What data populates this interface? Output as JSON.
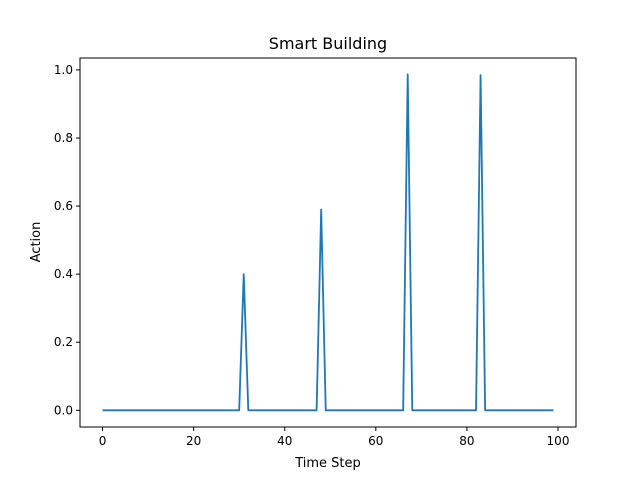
{
  "chart_data": {
    "type": "line",
    "title": "Smart Building",
    "xlabel": "Time Step",
    "ylabel": "Action",
    "xlim": [
      -4.95,
      103.95
    ],
    "ylim": [
      -0.049,
      1.035
    ],
    "xticks": [
      0,
      20,
      40,
      60,
      80,
      100
    ],
    "yticks": [
      0.0,
      0.2,
      0.4,
      0.6,
      0.8,
      1.0
    ],
    "xtick_labels": [
      "0",
      "20",
      "40",
      "60",
      "80",
      "100"
    ],
    "ytick_labels": [
      "0.0",
      "0.2",
      "0.4",
      "0.6",
      "0.8",
      "1.0"
    ],
    "grid": false,
    "series": [
      {
        "color": "#1f77b4",
        "points": [
          [
            0,
            0
          ],
          [
            30,
            0
          ],
          [
            31,
            0.4
          ],
          [
            32,
            0
          ],
          [
            47,
            0
          ],
          [
            48,
            0.59
          ],
          [
            49,
            0
          ],
          [
            66,
            0
          ],
          [
            67,
            0.987
          ],
          [
            68,
            0
          ],
          [
            82,
            0
          ],
          [
            83,
            0.985
          ],
          [
            84,
            0
          ],
          [
            99,
            0
          ]
        ]
      }
    ]
  }
}
